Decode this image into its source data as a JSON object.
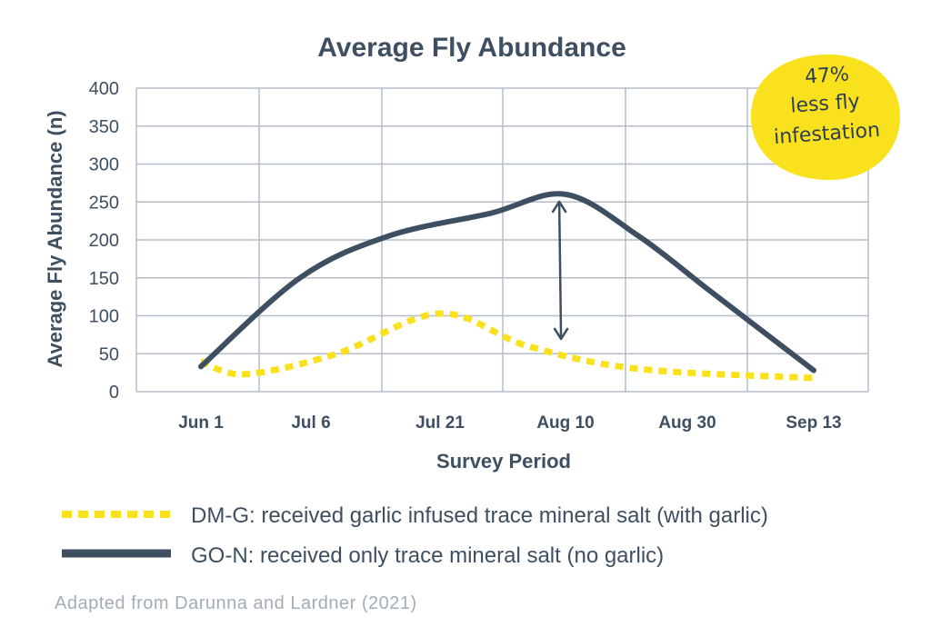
{
  "chart_data": {
    "type": "line",
    "title": "Average Fly Abundance",
    "xlabel": "Survey Period",
    "ylabel": "Average Fly Abundance (n)",
    "ylim": [
      0,
      400
    ],
    "yticks": [
      0,
      50,
      100,
      150,
      200,
      250,
      300,
      350,
      400
    ],
    "categories": [
      "Jun 1",
      "Jul 6",
      "Jul 21",
      "Aug 10",
      "Aug 30",
      "Sep 13"
    ],
    "grid": true,
    "series": [
      {
        "name": "DM-G: received garlic infused trace mineral salt (with garlic)",
        "style": "dotted",
        "color": "#f9e21d",
        "points": [
          [
            0,
            40
          ],
          [
            0.4,
            23
          ],
          [
            1.2,
            50
          ],
          [
            2.0,
            103
          ],
          [
            2.7,
            60
          ],
          [
            3.6,
            30
          ],
          [
            5.0,
            18
          ]
        ]
      },
      {
        "name": "GO-N: received only trace mineral salt (no garlic)",
        "style": "solid",
        "color": "#3d4f61",
        "points": [
          [
            0,
            33
          ],
          [
            0.9,
            150
          ],
          [
            1.6,
            205
          ],
          [
            2.4,
            235
          ],
          [
            3.0,
            260
          ],
          [
            3.6,
            205
          ],
          [
            4.2,
            130
          ],
          [
            5.0,
            28
          ]
        ]
      }
    ],
    "arrow": {
      "x": 2.95,
      "from": 260,
      "to": 60
    },
    "annotation": {
      "text_lines": [
        "47%",
        "less fly",
        "infestation"
      ],
      "color": "#f9e21d"
    },
    "legend_position": "bottom"
  },
  "source_note": "Adapted from Darunna and Lardner (2021)",
  "colors": {
    "text": "#3d4f61",
    "grid": "#b5bec8",
    "source": "#a3adb8"
  }
}
